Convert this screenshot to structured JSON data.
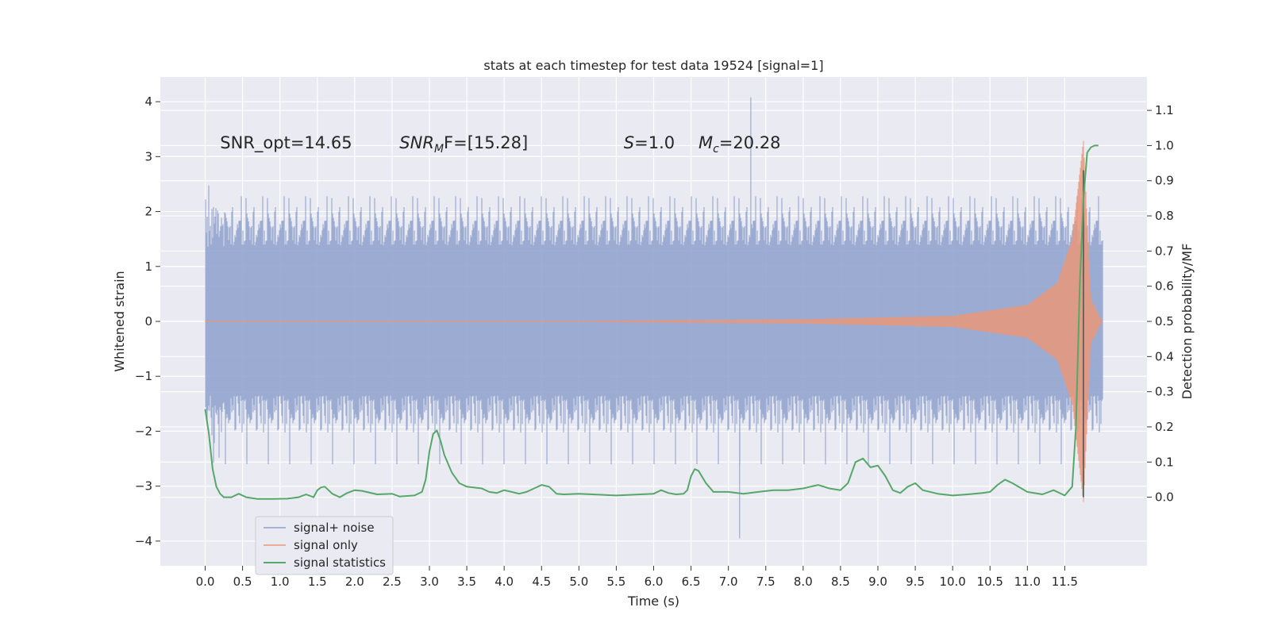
{
  "chart_data": {
    "type": "line",
    "title": "stats at each timestep for test data 19524 [signal=1]",
    "xlabel": "Time (s)",
    "ylabel_left": "Whitened strain",
    "ylabel_right": "Detection probability/MF",
    "xlim": [
      -0.6,
      12.6
    ],
    "ylim_left": [
      -4.45,
      4.45
    ],
    "ylim_right": [
      -0.195,
      1.195
    ],
    "xticks": [
      "0.0",
      "0.5",
      "1.0",
      "1.5",
      "2.0",
      "2.5",
      "3.0",
      "3.5",
      "4.0",
      "4.5",
      "5.0",
      "5.5",
      "6.0",
      "6.5",
      "7.0",
      "7.5",
      "8.0",
      "8.5",
      "9.0",
      "9.5",
      "10.0",
      "10.5",
      "11.0",
      "11.5"
    ],
    "yticks_left": [
      "4",
      "3",
      "2",
      "1",
      "0",
      "−1",
      "−2",
      "−3",
      "−4"
    ],
    "yticks_right": [
      "1.1",
      "1.0",
      "0.9",
      "0.8",
      "0.7",
      "0.6",
      "0.5",
      "0.4",
      "0.3",
      "0.2",
      "0.1",
      "0.0"
    ],
    "grid": true,
    "background": "#eaeaf2",
    "legend_position": "lower-left",
    "annotations": [
      {
        "key": "snr_opt",
        "text": "SNR_opt=14.65"
      },
      {
        "key": "snr_mf",
        "main": "SNR",
        "sub": "M",
        "rest": "F=[15.28]"
      },
      {
        "key": "s",
        "main": "S",
        "rest": "=1.0"
      },
      {
        "key": "mc",
        "main": "M",
        "sub": "c",
        "rest": "=20.28"
      }
    ],
    "vertical_marker_x": 11.75,
    "series": [
      {
        "name": "signal+ noise",
        "color": "#8da0cb",
        "axis": "left",
        "x_range": [
          0.0,
          12.0
        ],
        "envelope_level": 1.35,
        "typical_max": 2.6,
        "typical_min": -2.6,
        "observed_max": 4.08,
        "observed_min": -3.95,
        "x_at_max": 7.3,
        "x_at_min": 7.15
      },
      {
        "name": "signal only",
        "color": "#e9967a",
        "axis": "left",
        "x_range": [
          0.0,
          12.0
        ],
        "note": "chirp",
        "amplitude_points": [
          [
            0.0,
            0.0
          ],
          [
            5.0,
            0.01
          ],
          [
            8.0,
            0.04
          ],
          [
            10.0,
            0.1
          ],
          [
            11.0,
            0.3
          ],
          [
            11.4,
            0.7
          ],
          [
            11.6,
            1.5
          ],
          [
            11.75,
            3.3
          ],
          [
            11.85,
            0.4
          ],
          [
            12.0,
            0.0
          ]
        ]
      },
      {
        "name": "signal statistics",
        "color": "#55a868",
        "axis": "right",
        "points": [
          [
            0.0,
            0.25
          ],
          [
            0.05,
            0.18
          ],
          [
            0.1,
            0.08
          ],
          [
            0.15,
            0.03
          ],
          [
            0.2,
            0.01
          ],
          [
            0.25,
            0.0
          ],
          [
            0.35,
            0.0
          ],
          [
            0.45,
            0.01
          ],
          [
            0.55,
            0.0
          ],
          [
            0.7,
            -0.005
          ],
          [
            0.9,
            -0.005
          ],
          [
            1.1,
            -0.004
          ],
          [
            1.25,
            0.0
          ],
          [
            1.35,
            0.008
          ],
          [
            1.45,
            0.0
          ],
          [
            1.5,
            0.02
          ],
          [
            1.55,
            0.028
          ],
          [
            1.6,
            0.03
          ],
          [
            1.65,
            0.02
          ],
          [
            1.7,
            0.01
          ],
          [
            1.8,
            0.0
          ],
          [
            1.9,
            0.012
          ],
          [
            2.0,
            0.02
          ],
          [
            2.1,
            0.018
          ],
          [
            2.3,
            0.008
          ],
          [
            2.5,
            0.01
          ],
          [
            2.6,
            0.002
          ],
          [
            2.8,
            0.005
          ],
          [
            2.9,
            0.015
          ],
          [
            2.95,
            0.05
          ],
          [
            3.0,
            0.13
          ],
          [
            3.05,
            0.18
          ],
          [
            3.1,
            0.19
          ],
          [
            3.15,
            0.16
          ],
          [
            3.2,
            0.12
          ],
          [
            3.3,
            0.07
          ],
          [
            3.4,
            0.04
          ],
          [
            3.5,
            0.03
          ],
          [
            3.7,
            0.025
          ],
          [
            3.8,
            0.015
          ],
          [
            3.9,
            0.012
          ],
          [
            4.0,
            0.02
          ],
          [
            4.1,
            0.015
          ],
          [
            4.2,
            0.01
          ],
          [
            4.3,
            0.015
          ],
          [
            4.5,
            0.035
          ],
          [
            4.6,
            0.03
          ],
          [
            4.7,
            0.01
          ],
          [
            4.8,
            0.008
          ],
          [
            5.0,
            0.01
          ],
          [
            5.5,
            0.005
          ],
          [
            6.0,
            0.01
          ],
          [
            6.1,
            0.02
          ],
          [
            6.2,
            0.012
          ],
          [
            6.3,
            0.008
          ],
          [
            6.4,
            0.01
          ],
          [
            6.45,
            0.02
          ],
          [
            6.5,
            0.06
          ],
          [
            6.55,
            0.08
          ],
          [
            6.6,
            0.075
          ],
          [
            6.7,
            0.04
          ],
          [
            6.8,
            0.015
          ],
          [
            7.0,
            0.015
          ],
          [
            7.2,
            0.01
          ],
          [
            7.4,
            0.015
          ],
          [
            7.6,
            0.02
          ],
          [
            7.8,
            0.02
          ],
          [
            8.0,
            0.025
          ],
          [
            8.2,
            0.035
          ],
          [
            8.35,
            0.025
          ],
          [
            8.5,
            0.02
          ],
          [
            8.6,
            0.04
          ],
          [
            8.7,
            0.1
          ],
          [
            8.8,
            0.11
          ],
          [
            8.9,
            0.085
          ],
          [
            9.0,
            0.09
          ],
          [
            9.1,
            0.06
          ],
          [
            9.2,
            0.02
          ],
          [
            9.3,
            0.012
          ],
          [
            9.4,
            0.03
          ],
          [
            9.5,
            0.04
          ],
          [
            9.6,
            0.02
          ],
          [
            9.8,
            0.01
          ],
          [
            10.0,
            0.005
          ],
          [
            10.2,
            0.008
          ],
          [
            10.4,
            0.012
          ],
          [
            10.5,
            0.015
          ],
          [
            10.6,
            0.035
          ],
          [
            10.7,
            0.05
          ],
          [
            10.8,
            0.04
          ],
          [
            11.0,
            0.015
          ],
          [
            11.2,
            0.008
          ],
          [
            11.35,
            0.02
          ],
          [
            11.5,
            0.005
          ],
          [
            11.6,
            0.03
          ],
          [
            11.65,
            0.2
          ],
          [
            11.7,
            0.6
          ],
          [
            11.75,
            0.85
          ],
          [
            11.8,
            0.98
          ],
          [
            11.85,
            0.995
          ],
          [
            11.9,
            1.0
          ],
          [
            11.95,
            1.0
          ]
        ]
      }
    ]
  }
}
